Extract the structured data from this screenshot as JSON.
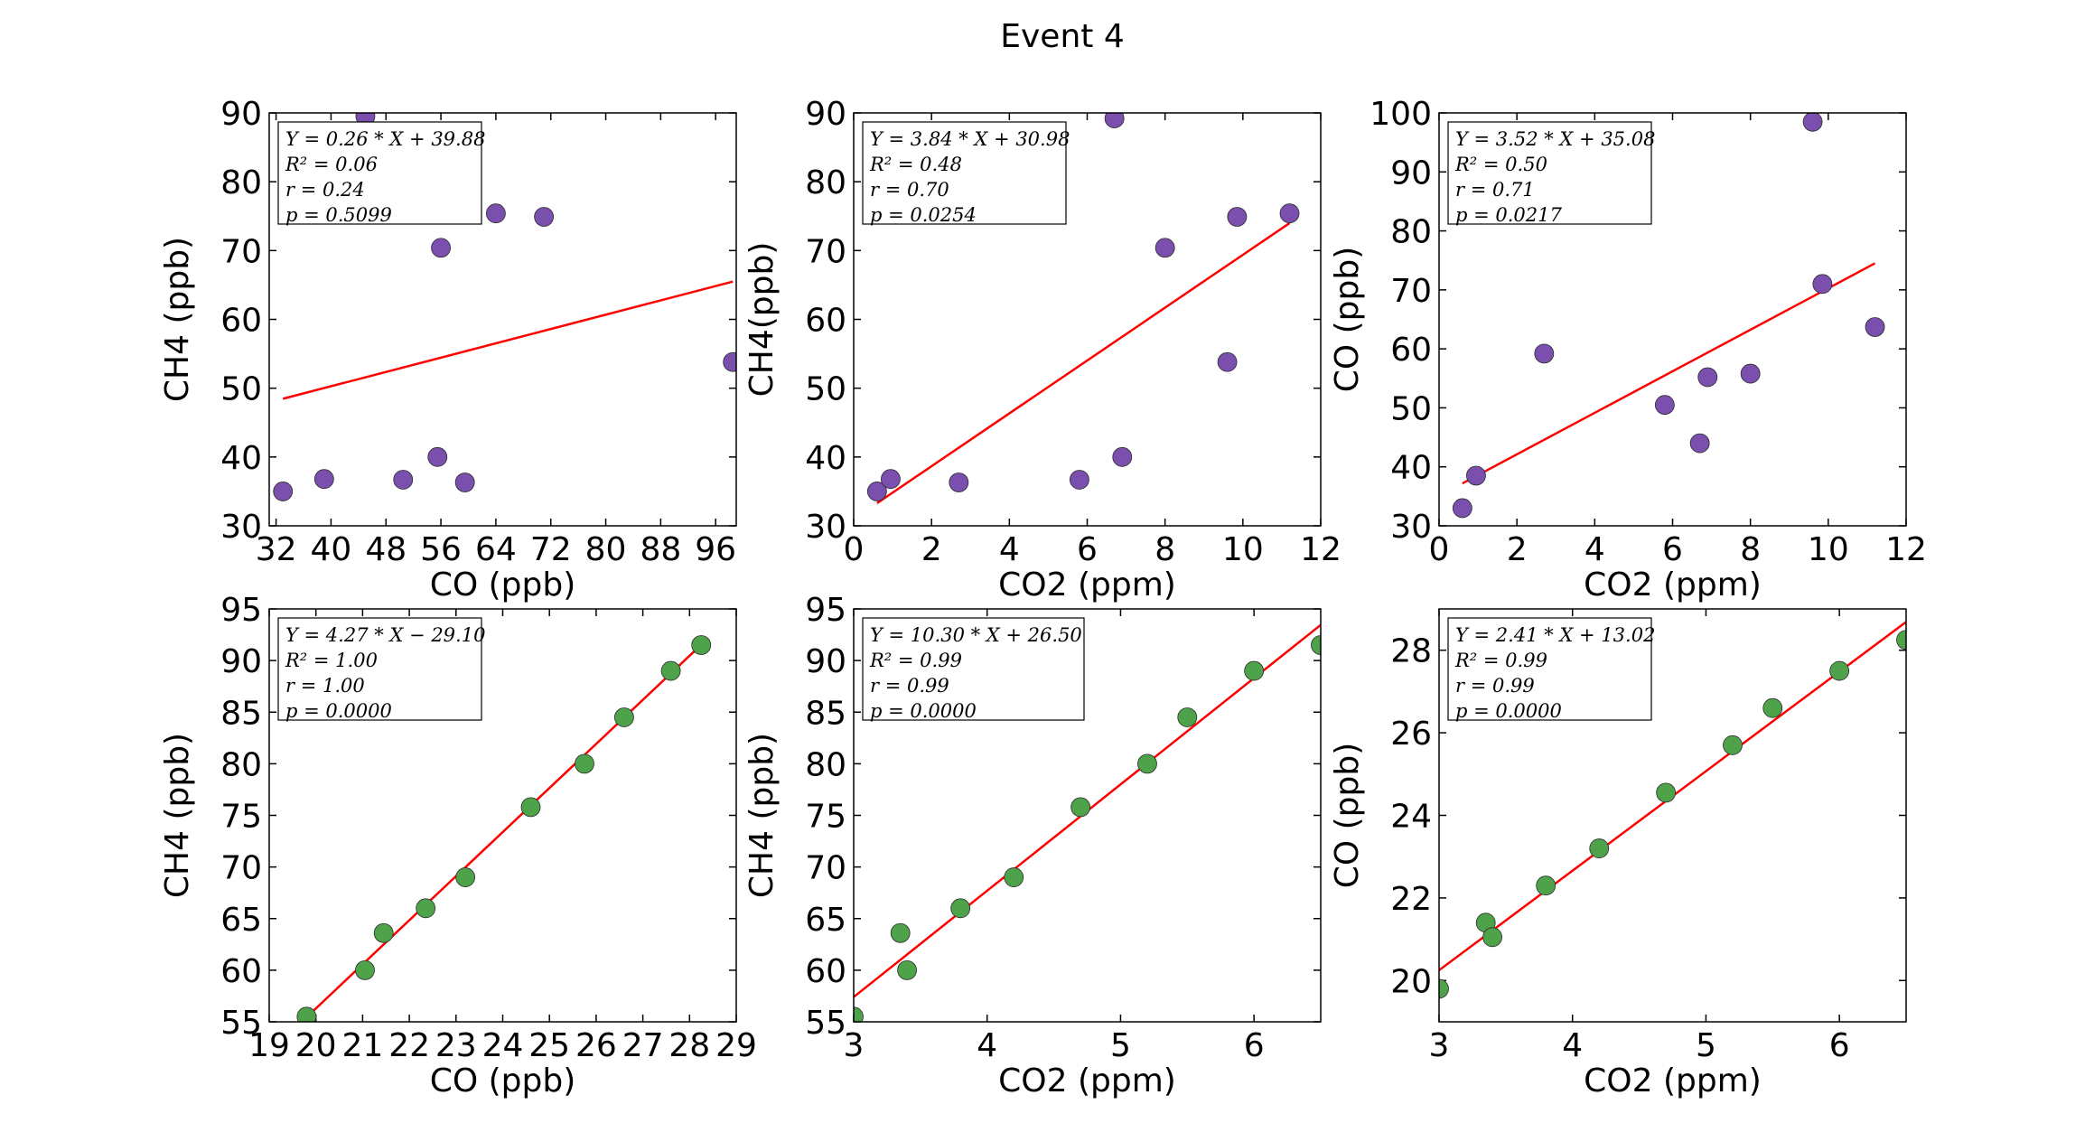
{
  "title": "Event 4",
  "colors": {
    "purple": "#7b4fad",
    "green": "#4ea24a",
    "fit": "#ff0000"
  },
  "chart_data": [
    {
      "type": "scatter",
      "xlabel": "CO (ppb)",
      "ylabel": "CH4 (ppb)",
      "xlim": [
        31,
        99
      ],
      "ylim": [
        30,
        90
      ],
      "xticks": [
        32,
        40,
        48,
        56,
        64,
        72,
        80,
        88,
        96
      ],
      "yticks": [
        30,
        40,
        50,
        60,
        70,
        80,
        90
      ],
      "color": "purple",
      "points": [
        [
          33,
          35
        ],
        [
          39,
          36.8
        ],
        [
          45,
          89.5
        ],
        [
          50.5,
          36.7
        ],
        [
          55.5,
          40
        ],
        [
          56,
          70.4
        ],
        [
          59.5,
          36.3
        ],
        [
          64,
          75.4
        ],
        [
          71,
          74.9
        ],
        [
          98.5,
          53.8
        ]
      ],
      "fit": {
        "slope": 0.26,
        "intercept": 39.88,
        "x": [
          33,
          98.5
        ]
      },
      "stats": [
        "Y = 0.26 * X + 39.88",
        "R² = 0.06",
        "r = 0.24",
        "p = 0.5099"
      ]
    },
    {
      "type": "scatter",
      "xlabel": "CO2 (ppm)",
      "ylabel": "CH4(ppb)",
      "xlim": [
        0,
        12
      ],
      "ylim": [
        30,
        90
      ],
      "xticks": [
        0,
        2,
        4,
        6,
        8,
        10,
        12
      ],
      "yticks": [
        30,
        40,
        50,
        60,
        70,
        80,
        90
      ],
      "color": "purple",
      "points": [
        [
          0.6,
          35
        ],
        [
          0.95,
          36.8
        ],
        [
          2.7,
          36.3
        ],
        [
          5.8,
          36.7
        ],
        [
          6.7,
          89.2
        ],
        [
          6.9,
          40
        ],
        [
          8,
          70.4
        ],
        [
          9.6,
          53.8
        ],
        [
          9.85,
          74.9
        ],
        [
          11.2,
          75.4
        ]
      ],
      "fit": {
        "slope": 3.84,
        "intercept": 30.98,
        "x": [
          0.6,
          11.2
        ]
      },
      "stats": [
        "Y = 3.84 * X + 30.98",
        "R² = 0.48",
        "r = 0.70",
        "p = 0.0254"
      ]
    },
    {
      "type": "scatter",
      "xlabel": "CO2 (ppm)",
      "ylabel": "CO (ppb)",
      "xlim": [
        0,
        12
      ],
      "ylim": [
        30,
        100
      ],
      "xticks": [
        0,
        2,
        4,
        6,
        8,
        10,
        12
      ],
      "yticks": [
        30,
        40,
        50,
        60,
        70,
        80,
        90,
        100
      ],
      "color": "purple",
      "points": [
        [
          0.6,
          33
        ],
        [
          0.95,
          38.5
        ],
        [
          2.7,
          59.2
        ],
        [
          5.8,
          50.5
        ],
        [
          6.7,
          44
        ],
        [
          6.9,
          55.2
        ],
        [
          8,
          55.8
        ],
        [
          9.6,
          98.5
        ],
        [
          9.85,
          71
        ],
        [
          11.2,
          63.7
        ]
      ],
      "fit": {
        "slope": 3.52,
        "intercept": 35.08,
        "x": [
          0.6,
          11.2
        ]
      },
      "stats": [
        "Y = 3.52 * X + 35.08",
        "R² = 0.50",
        "r = 0.71",
        "p = 0.0217"
      ]
    },
    {
      "type": "scatter",
      "xlabel": "CO (ppb)",
      "ylabel": "CH4 (ppb)",
      "xlim": [
        19,
        29
      ],
      "ylim": [
        55,
        95
      ],
      "xticks": [
        19,
        20,
        21,
        22,
        23,
        24,
        25,
        26,
        27,
        28,
        29
      ],
      "yticks": [
        55,
        60,
        65,
        70,
        75,
        80,
        85,
        90,
        95
      ],
      "color": "green",
      "points": [
        [
          19.8,
          55.5
        ],
        [
          21.05,
          60
        ],
        [
          21.45,
          63.6
        ],
        [
          22.35,
          66
        ],
        [
          23.2,
          69
        ],
        [
          24.6,
          75.8
        ],
        [
          25.75,
          80
        ],
        [
          26.6,
          84.5
        ],
        [
          27.6,
          89
        ],
        [
          28.25,
          91.5
        ]
      ],
      "fit": {
        "slope": 4.27,
        "intercept": -29.1,
        "x": [
          19.8,
          28.25
        ]
      },
      "stats": [
        "Y = 4.27 * X − 29.10",
        "R² = 1.00",
        "r = 1.00",
        "p = 0.0000"
      ]
    },
    {
      "type": "scatter",
      "xlabel": "CO2 (ppm)",
      "ylabel": "CH4 (ppb)",
      "xlim": [
        3,
        6.5
      ],
      "ylim": [
        55,
        95
      ],
      "xticks": [
        3,
        4,
        5,
        6
      ],
      "yticks": [
        55,
        60,
        65,
        70,
        75,
        80,
        85,
        90,
        95
      ],
      "color": "green",
      "points": [
        [
          3,
          55.5
        ],
        [
          3.35,
          63.6
        ],
        [
          3.4,
          60
        ],
        [
          3.8,
          66
        ],
        [
          4.2,
          69
        ],
        [
          4.7,
          75.8
        ],
        [
          5.2,
          80
        ],
        [
          5.5,
          84.5
        ],
        [
          6,
          89
        ],
        [
          6.5,
          91.5
        ]
      ],
      "fit": {
        "slope": 10.3,
        "intercept": 26.5,
        "x": [
          3,
          6.5
        ]
      },
      "stats": [
        "Y = 10.30 * X + 26.50",
        "R² = 0.99",
        "r = 0.99",
        "p = 0.0000"
      ]
    },
    {
      "type": "scatter",
      "xlabel": "CO2 (ppm)",
      "ylabel": "CO (ppb)",
      "xlim": [
        3,
        6.5
      ],
      "ylim": [
        19,
        29
      ],
      "xticks": [
        3,
        4,
        5,
        6
      ],
      "yticks": [
        20,
        22,
        24,
        26,
        28
      ],
      "color": "green",
      "points": [
        [
          3,
          19.8
        ],
        [
          3.35,
          21.4
        ],
        [
          3.4,
          21.05
        ],
        [
          3.8,
          22.3
        ],
        [
          4.2,
          23.2
        ],
        [
          4.7,
          24.55
        ],
        [
          5.2,
          25.7
        ],
        [
          5.5,
          26.6
        ],
        [
          6,
          27.5
        ],
        [
          6.5,
          28.25
        ]
      ],
      "fit": {
        "slope": 2.41,
        "intercept": 13.02,
        "x": [
          3,
          6.5
        ]
      },
      "stats": [
        "Y = 2.41 * X + 13.02",
        "R² = 0.99",
        "r = 0.99",
        "p = 0.0000"
      ]
    }
  ]
}
